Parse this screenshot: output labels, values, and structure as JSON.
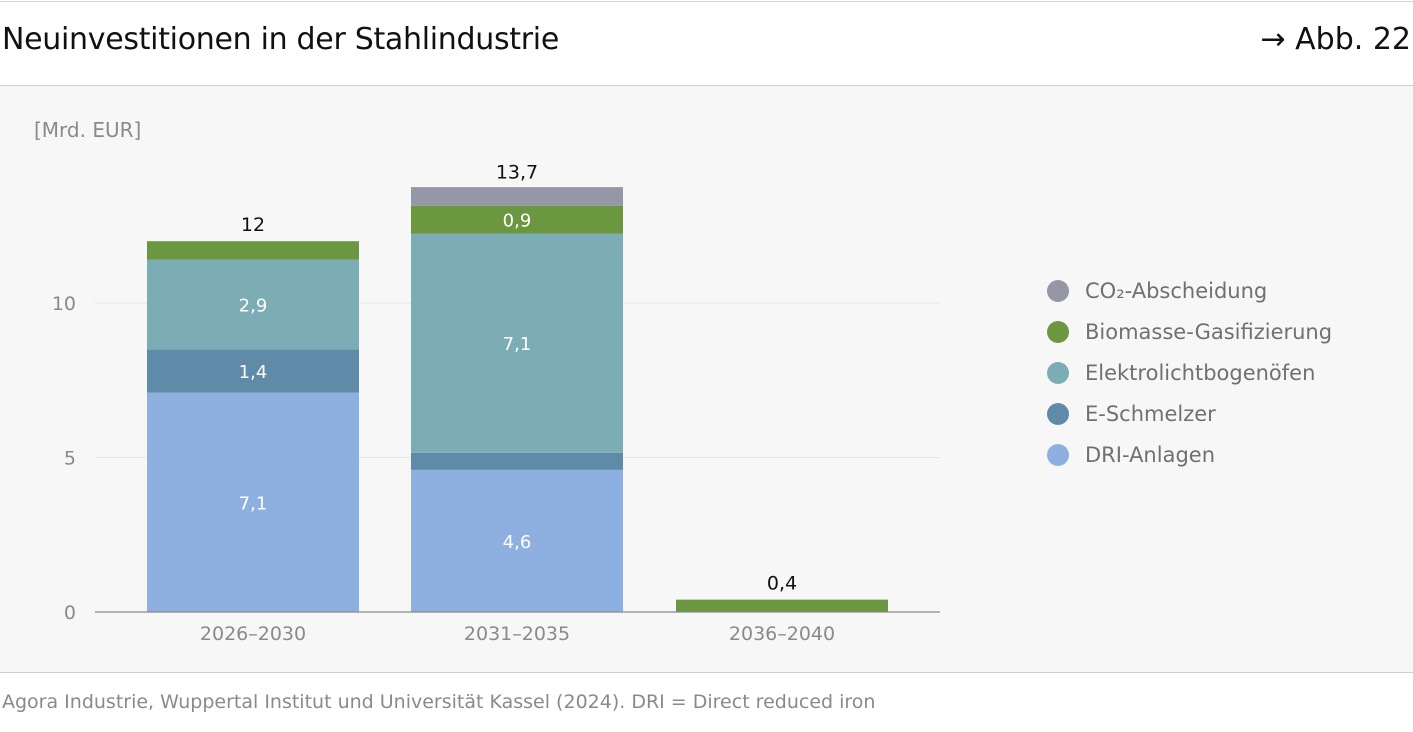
{
  "header": {
    "title": "Neuinvestitionen in der Stahlindustrie",
    "figure_ref": "→ Abb. 22"
  },
  "footer": {
    "source": "Agora Industrie, Wuppertal Institut und Universität Kassel (2024). DRI = Direct reduced iron"
  },
  "chart_data": {
    "type": "bar",
    "stacked": true,
    "unit_label": "[Mrd. EUR]",
    "categories": [
      "2026–2030",
      "2031–2035",
      "2036–2040"
    ],
    "ylim": [
      0,
      13.7
    ],
    "yticks": [
      0,
      5,
      10
    ],
    "grid": true,
    "legend_position": "right",
    "series": [
      {
        "name": "DRI-Anlagen",
        "color": "#8eb0e0",
        "values": [
          7.1,
          4.6,
          0
        ],
        "labels": [
          "7,1",
          "4,6",
          ""
        ]
      },
      {
        "name": "E-Schmelzer",
        "color": "#5f8ba8",
        "values": [
          1.4,
          0.55,
          0
        ],
        "labels": [
          "1,4",
          "",
          ""
        ]
      },
      {
        "name": "Elektrolichtbogenöfen",
        "color": "#7dadb4",
        "values": [
          2.9,
          7.1,
          0
        ],
        "labels": [
          "2,9",
          "7,1",
          ""
        ]
      },
      {
        "name": "Biomasse-Gasifizierung",
        "color": "#6a973f",
        "values": [
          0.6,
          0.9,
          0.4
        ],
        "labels": [
          "",
          "0,9",
          ""
        ]
      },
      {
        "name": "CO₂-Abscheidung",
        "color": "#9597a6",
        "values": [
          0,
          0.6,
          0
        ],
        "labels": [
          "",
          "",
          ""
        ]
      }
    ],
    "legend_order": [
      "CO₂-Abscheidung",
      "Biomasse-Gasifizierung",
      "Elektrolichtbogenöfen",
      "E-Schmelzer",
      "DRI-Anlagen"
    ],
    "totals": [
      {
        "value": 12,
        "label": "12"
      },
      {
        "value": 13.7,
        "label": "13,7"
      },
      {
        "value": 0.4,
        "label": "0,4"
      }
    ]
  }
}
